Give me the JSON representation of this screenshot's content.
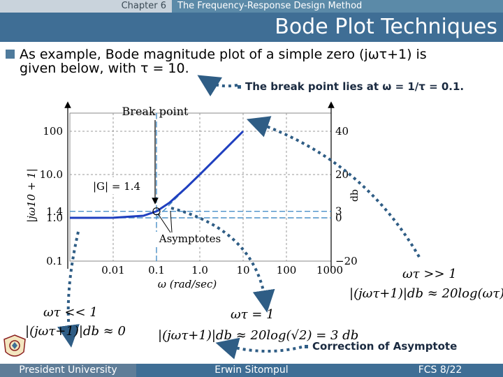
{
  "header": {
    "chapter": "Chapter 6",
    "topic": "The Frequency-Response Design Method",
    "title": "Bode Plot Techniques"
  },
  "bullet": {
    "line1": "As example, Bode magnitude plot of a simple zero (jωτ+1) is",
    "line2": "given below, with τ = 10."
  },
  "sub_bullets": {
    "break_point": "The break point lies at ω = 1/τ = 0.1.",
    "correction": "Correction of Asymptote"
  },
  "figure": {
    "break_point_label": "Break point",
    "g_label": "|G| = 1.4",
    "asymptotes_label": "Asymptotes",
    "x_axis_label": "ω (rad/sec)",
    "left_axis_label": "|jω10 + 1|",
    "right_axis_label": "db"
  },
  "chart_data": {
    "type": "line",
    "x_scale": "log",
    "xlim": [
      0.001,
      1000
    ],
    "x_ticks": [
      "0.01",
      "0.1",
      "1.0",
      "10",
      "100",
      "1000"
    ],
    "left_ticks": [
      "100",
      "10.0",
      "1.4",
      "1.0",
      "0.1"
    ],
    "right_ticks": [
      "40",
      "20",
      "3",
      "0",
      "−20"
    ],
    "series": [
      {
        "x": [
          0.001,
          0.01,
          0.05,
          0.1,
          0.2,
          0.5,
          1,
          2,
          5,
          10
        ],
        "y": [
          1.0,
          1.005,
          1.118,
          1.414,
          2.236,
          5.099,
          10.05,
          20.02,
          50.01,
          100.0
        ]
      }
    ],
    "colors": {
      "curve": "#1f3fbf",
      "asymptote": "#4a90c8"
    },
    "grid": true
  },
  "annotations": {
    "low": {
      "condition": "ωτ << 1",
      "formula": "|(jωτ+1)|db ≈ 0"
    },
    "mid": {
      "condition": "ωτ = 1",
      "formula": "|(jωτ+1)|db ≈ 20log(√2) = 3 db"
    },
    "high": {
      "condition": "ωτ >> 1",
      "formula": "|(jωτ+1)|db ≈ 20log(ωτ)"
    }
  },
  "footer": {
    "university": "President University",
    "author": "Erwin Sitompul",
    "page": "FCS 8/22"
  }
}
